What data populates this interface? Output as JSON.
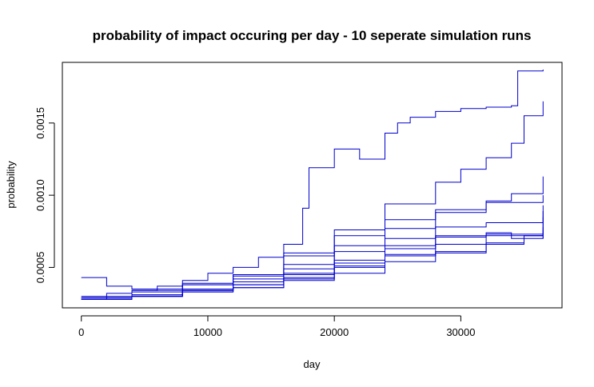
{
  "chart_data": {
    "type": "line",
    "title": "probability of impact occuring per day - 10 seperate simulation runs",
    "xlabel": "day",
    "ylabel": "probability",
    "xlim": [
      -1500,
      38000
    ],
    "ylim": [
      0.00022,
      0.00192
    ],
    "x_ticks": [
      0,
      10000,
      20000,
      30000
    ],
    "x_tick_labels": [
      "0",
      "10000",
      "20000",
      "30000"
    ],
    "y_ticks": [
      0.0005,
      0.001,
      0.0015
    ],
    "y_tick_labels": [
      "0.0005",
      "0.0010",
      "0.0015"
    ],
    "grid": false,
    "line_color": "#0000cd",
    "step": true,
    "series": [
      {
        "x": [
          0,
          2000,
          4000,
          6000,
          8000,
          10000,
          12000,
          14000,
          16000,
          17500,
          18000,
          20000,
          22000,
          24000,
          25000,
          26000,
          28000,
          30000,
          32000,
          34000,
          34500,
          36500
        ],
        "values": [
          0.00028,
          0.00032,
          0.00034,
          0.00037,
          0.00041,
          0.00046,
          0.0005,
          0.00057,
          0.00066,
          0.00091,
          0.00119,
          0.00132,
          0.00125,
          0.00143,
          0.0015,
          0.00154,
          0.00158,
          0.0016,
          0.00161,
          0.00162,
          0.00186,
          0.00187
        ]
      },
      {
        "x": [
          0,
          4000,
          8000,
          12000,
          16000,
          20000,
          24000,
          28000,
          30000,
          32000,
          34000,
          35000,
          36500
        ],
        "values": [
          0.00028,
          0.00033,
          0.00038,
          0.00045,
          0.00058,
          0.00076,
          0.00094,
          0.00109,
          0.00118,
          0.00126,
          0.00136,
          0.00155,
          0.00165
        ]
      },
      {
        "x": [
          0,
          4000,
          8000,
          12000,
          16000,
          20000,
          24000,
          28000,
          32000,
          34000,
          36500
        ],
        "values": [
          0.0003,
          0.00034,
          0.00039,
          0.00045,
          0.0006,
          0.00072,
          0.00083,
          0.00088,
          0.00096,
          0.00101,
          0.00113
        ]
      },
      {
        "x": [
          0,
          2000,
          4000,
          8000,
          12000,
          16000,
          20000,
          24000,
          28000,
          32000,
          36500
        ],
        "values": [
          0.00043,
          0.00037,
          0.00035,
          0.00038,
          0.00044,
          0.00052,
          0.00065,
          0.00077,
          0.0009,
          0.00095,
          0.001
        ]
      },
      {
        "x": [
          0,
          4000,
          8000,
          12000,
          16000,
          20000,
          24000,
          28000,
          32000,
          36500
        ],
        "values": [
          0.00028,
          0.0003,
          0.00034,
          0.00042,
          0.00049,
          0.00061,
          0.0007,
          0.00078,
          0.00081,
          0.00093
        ]
      },
      {
        "x": [
          0,
          4000,
          8000,
          12000,
          16000,
          20000,
          24000,
          28000,
          32000,
          36500
        ],
        "values": [
          0.00029,
          0.00031,
          0.00035,
          0.0004,
          0.00046,
          0.00053,
          0.00065,
          0.00071,
          0.00073,
          0.00076
        ]
      },
      {
        "x": [
          0,
          4000,
          8000,
          12000,
          16000,
          20000,
          24000,
          28000,
          32000,
          36500
        ],
        "values": [
          0.00029,
          0.00031,
          0.00034,
          0.00038,
          0.00043,
          0.00051,
          0.00059,
          0.00066,
          0.00072,
          0.0007
        ]
      },
      {
        "x": [
          0,
          4000,
          8000,
          12000,
          16000,
          20000,
          24000,
          28000,
          32000,
          35000,
          36500
        ],
        "values": [
          0.00028,
          0.0003,
          0.00033,
          0.00036,
          0.00042,
          0.0005,
          0.00058,
          0.0006,
          0.00066,
          0.00072,
          0.00085
        ]
      },
      {
        "x": [
          0,
          4000,
          8000,
          12000,
          16000,
          20000,
          24000,
          28000,
          32000,
          34000,
          36500
        ],
        "values": [
          0.00028,
          0.0003,
          0.00034,
          0.00038,
          0.00045,
          0.00055,
          0.00063,
          0.00072,
          0.00074,
          0.0007,
          0.00078
        ]
      },
      {
        "x": [
          0,
          4000,
          8000,
          12000,
          16000,
          20000,
          24000,
          28000,
          32000,
          35000,
          36500
        ],
        "values": [
          0.00028,
          0.0003,
          0.00033,
          0.00036,
          0.00041,
          0.00046,
          0.00054,
          0.00061,
          0.00067,
          0.00072,
          0.00089
        ]
      }
    ]
  }
}
